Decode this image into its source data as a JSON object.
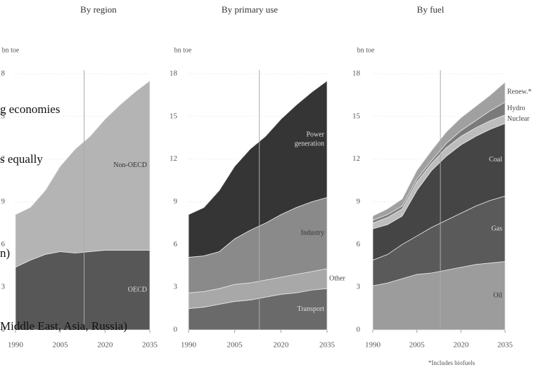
{
  "chart_data": [
    {
      "type": "area",
      "stacked": true,
      "title": "By region",
      "y_label": "bn toe",
      "x": [
        1990,
        1995,
        2000,
        2005,
        2010,
        2015,
        2020,
        2025,
        2030,
        2035
      ],
      "xlim": [
        1990,
        2035
      ],
      "xticks": [
        1990,
        2005,
        2020,
        2035
      ],
      "ylim": [
        0,
        18
      ],
      "yticks": [
        0,
        3,
        6,
        9,
        12,
        15,
        18
      ],
      "reference_x": 2013,
      "series": [
        {
          "name": "OECD",
          "color": "#575757",
          "values": [
            4.4,
            4.9,
            5.3,
            5.5,
            5.4,
            5.5,
            5.6,
            5.6,
            5.6,
            5.6
          ]
        },
        {
          "name": "Non-OECD",
          "color": "#b4b4b4",
          "values": [
            3.7,
            3.7,
            4.5,
            6.0,
            7.3,
            8.1,
            9.2,
            10.2,
            11.1,
            11.9
          ]
        }
      ],
      "overlay_texts": [
        "g economies",
        "s equally",
        "n)",
        "Middle East, Asia, Russia)"
      ]
    },
    {
      "type": "area",
      "stacked": true,
      "title": "By primary use",
      "y_label": "bn toe",
      "x": [
        1990,
        1995,
        2000,
        2005,
        2010,
        2015,
        2020,
        2025,
        2030,
        2035
      ],
      "xlim": [
        1990,
        2035
      ],
      "xticks": [
        1990,
        2005,
        2020,
        2035
      ],
      "ylim": [
        0,
        18
      ],
      "yticks": [
        0,
        3,
        6,
        9,
        12,
        15,
        18
      ],
      "reference_x": 2013,
      "series": [
        {
          "name": "Transport",
          "color": "#6a6a6a",
          "values": [
            1.5,
            1.6,
            1.8,
            2.0,
            2.1,
            2.3,
            2.5,
            2.6,
            2.8,
            2.9
          ]
        },
        {
          "name": "Other",
          "color": "#a8a8a8",
          "values": [
            1.1,
            1.1,
            1.1,
            1.2,
            1.2,
            1.2,
            1.2,
            1.3,
            1.3,
            1.4
          ]
        },
        {
          "name": "Industry",
          "color": "#8a8a8a",
          "values": [
            2.5,
            2.5,
            2.6,
            3.2,
            3.7,
            4.0,
            4.4,
            4.7,
            4.9,
            5.0
          ]
        },
        {
          "name": "Power generation",
          "color": "#353535",
          "values": [
            3.0,
            3.4,
            4.3,
            5.1,
            5.7,
            6.1,
            6.7,
            7.2,
            7.7,
            8.2
          ]
        }
      ]
    },
    {
      "type": "area",
      "stacked": true,
      "title": "By fuel",
      "y_label": "bn toe",
      "x": [
        1990,
        1995,
        2000,
        2005,
        2010,
        2015,
        2020,
        2025,
        2030,
        2035
      ],
      "xlim": [
        1990,
        2035
      ],
      "xticks": [
        1990,
        2005,
        2020,
        2035
      ],
      "ylim": [
        0,
        18
      ],
      "yticks": [
        0,
        3,
        6,
        9,
        12,
        15,
        18
      ],
      "reference_x": 2013,
      "series": [
        {
          "name": "Oil",
          "color": "#9c9c9c",
          "values": [
            3.1,
            3.3,
            3.6,
            3.9,
            4.0,
            4.2,
            4.4,
            4.6,
            4.7,
            4.8
          ]
        },
        {
          "name": "Gas",
          "color": "#5a5a5a",
          "values": [
            1.8,
            2.0,
            2.4,
            2.7,
            3.2,
            3.5,
            3.8,
            4.1,
            4.4,
            4.6
          ]
        },
        {
          "name": "Coal",
          "color": "#454545",
          "values": [
            2.2,
            2.1,
            2.0,
            3.2,
            4.0,
            4.5,
            4.8,
            4.9,
            5.0,
            5.1
          ]
        },
        {
          "name": "Nuclear",
          "color": "#bdbdbd",
          "values": [
            0.4,
            0.5,
            0.5,
            0.6,
            0.5,
            0.6,
            0.6,
            0.6,
            0.6,
            0.6
          ]
        },
        {
          "name": "Hydro",
          "color": "#7a7a7a",
          "values": [
            0.2,
            0.2,
            0.2,
            0.2,
            0.2,
            0.3,
            0.4,
            0.5,
            0.7,
            0.9
          ]
        },
        {
          "name": "Renew.*",
          "color": "#a0a0a0",
          "values": [
            0.3,
            0.4,
            0.5,
            0.6,
            0.7,
            0.8,
            0.9,
            1.0,
            1.1,
            1.4
          ]
        }
      ],
      "footnote": "*Includes biofuels"
    }
  ]
}
